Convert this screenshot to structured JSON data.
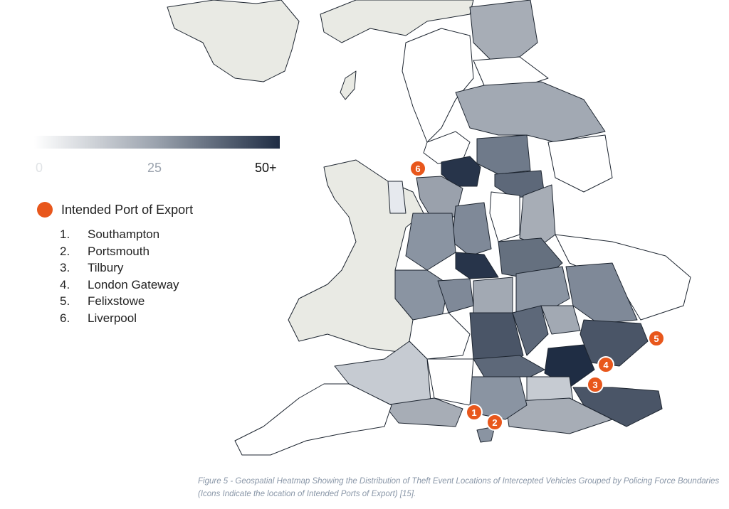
{
  "legend": {
    "scale": {
      "min_label": "0",
      "mid_label": "25",
      "max_label": "50+",
      "color_low": "#ffffff",
      "color_high": "#1f2d44"
    },
    "port_marker_label": "Intended Port of Export",
    "port_marker_color": "#e8571c",
    "ports": [
      {
        "number": "1.",
        "name": "Southampton"
      },
      {
        "number": "2.",
        "name": "Portsmouth"
      },
      {
        "number": "3.",
        "name": "Tilbury"
      },
      {
        "number": "4.",
        "name": "London Gateway"
      },
      {
        "number": "5.",
        "name": "Felixstowe"
      },
      {
        "number": "6.",
        "name": "Liverpool"
      }
    ]
  },
  "map_markers": [
    "1",
    "2",
    "3",
    "4",
    "5",
    "6"
  ],
  "caption": "Figure 5 - Geospatial Heatmap Showing the Distribution of Theft Event Locations of Intercepted Vehicles Grouped by Policing Force Boundaries (Icons Indicate the location of Intended Ports of Export) [15]."
}
